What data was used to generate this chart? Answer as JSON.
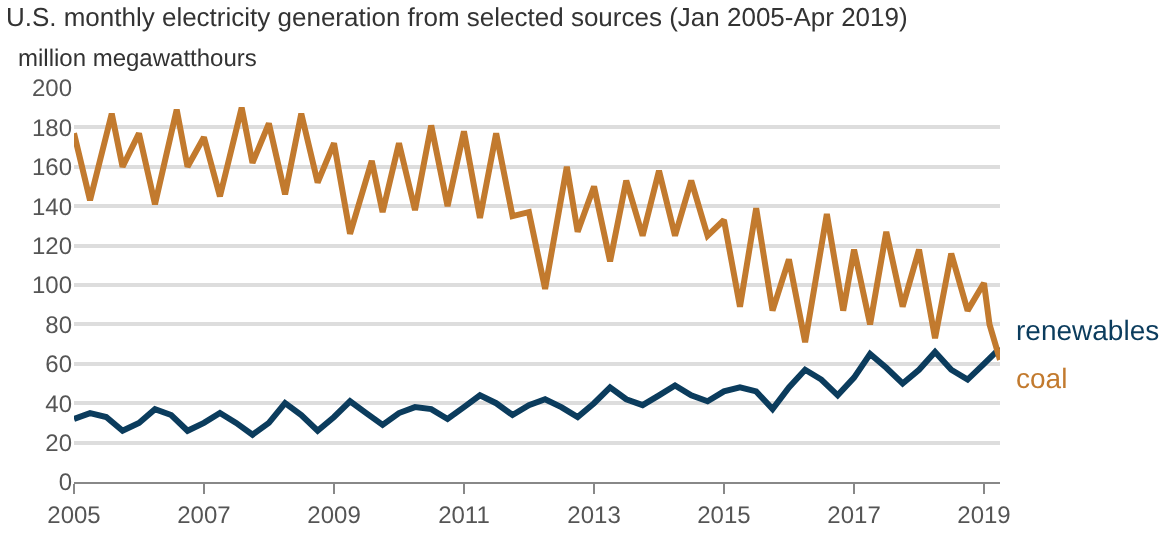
{
  "chart_data": {
    "type": "line",
    "title": "U.S. monthly electricity generation from selected sources (Jan 2005-Apr 2019)",
    "ylabel": "million megawatthours",
    "series": [
      {
        "name": "renewables",
        "color": "#0b3c5d",
        "x": [
          "2005-01",
          "2005-04",
          "2005-07",
          "2005-10",
          "2006-01",
          "2006-04",
          "2006-07",
          "2006-10",
          "2007-01",
          "2007-04",
          "2007-07",
          "2007-10",
          "2008-01",
          "2008-04",
          "2008-07",
          "2008-10",
          "2009-01",
          "2009-04",
          "2009-07",
          "2009-10",
          "2010-01",
          "2010-04",
          "2010-07",
          "2010-10",
          "2011-01",
          "2011-04",
          "2011-07",
          "2011-10",
          "2012-01",
          "2012-04",
          "2012-07",
          "2012-10",
          "2013-01",
          "2013-04",
          "2013-07",
          "2013-10",
          "2014-01",
          "2014-04",
          "2014-07",
          "2014-10",
          "2015-01",
          "2015-04",
          "2015-07",
          "2015-10",
          "2016-01",
          "2016-04",
          "2016-07",
          "2016-10",
          "2017-01",
          "2017-04",
          "2017-07",
          "2017-10",
          "2018-01",
          "2018-04",
          "2018-07",
          "2018-10",
          "2019-01",
          "2019-04"
        ],
        "values": [
          32,
          35,
          33,
          26,
          30,
          37,
          34,
          26,
          30,
          35,
          30,
          24,
          30,
          40,
          34,
          26,
          33,
          41,
          35,
          29,
          35,
          38,
          37,
          32,
          38,
          44,
          40,
          34,
          39,
          42,
          38,
          33,
          40,
          48,
          42,
          39,
          44,
          49,
          44,
          41,
          46,
          48,
          46,
          37,
          48,
          57,
          52,
          44,
          53,
          65,
          58,
          50,
          57,
          66,
          57,
          52,
          60,
          68
        ]
      },
      {
        "name": "coal",
        "color": "#c27a2e",
        "x": [
          "2005-01",
          "2005-04",
          "2005-08",
          "2005-10",
          "2006-01",
          "2006-04",
          "2006-08",
          "2006-10",
          "2007-01",
          "2007-04",
          "2007-08",
          "2007-10",
          "2008-01",
          "2008-04",
          "2008-07",
          "2008-10",
          "2009-01",
          "2009-04",
          "2009-08",
          "2009-10",
          "2010-01",
          "2010-04",
          "2010-07",
          "2010-10",
          "2011-01",
          "2011-04",
          "2011-07",
          "2011-10",
          "2012-01",
          "2012-04",
          "2012-08",
          "2012-10",
          "2013-01",
          "2013-04",
          "2013-07",
          "2013-10",
          "2014-01",
          "2014-04",
          "2014-07",
          "2014-10",
          "2015-01",
          "2015-04",
          "2015-07",
          "2015-10",
          "2016-01",
          "2016-04",
          "2016-08",
          "2016-11",
          "2017-01",
          "2017-04",
          "2017-07",
          "2017-10",
          "2018-01",
          "2018-04",
          "2018-07",
          "2018-10",
          "2019-01",
          "2019-02",
          "2019-04"
        ],
        "values": [
          177,
          143,
          187,
          160,
          177,
          141,
          189,
          160,
          175,
          145,
          190,
          162,
          182,
          146,
          187,
          152,
          172,
          126,
          163,
          137,
          172,
          138,
          181,
          140,
          178,
          134,
          177,
          135,
          137,
          98,
          160,
          127,
          150,
          112,
          153,
          125,
          158,
          125,
          153,
          125,
          133,
          89,
          139,
          87,
          113,
          71,
          136,
          87,
          118,
          80,
          127,
          89,
          118,
          73,
          116,
          87,
          101,
          80,
          62
        ]
      }
    ],
    "xlim": [
      "2005-01",
      "2019-04"
    ],
    "xticks": [
      "2005",
      "2007",
      "2009",
      "2011",
      "2013",
      "2015",
      "2017",
      "2019"
    ],
    "ylim": [
      0,
      200
    ],
    "yticks": [
      0,
      20,
      40,
      60,
      80,
      100,
      120,
      140,
      160,
      180,
      200
    ],
    "grid": "y",
    "legend": false,
    "marker": "none",
    "line_style": "solid"
  }
}
